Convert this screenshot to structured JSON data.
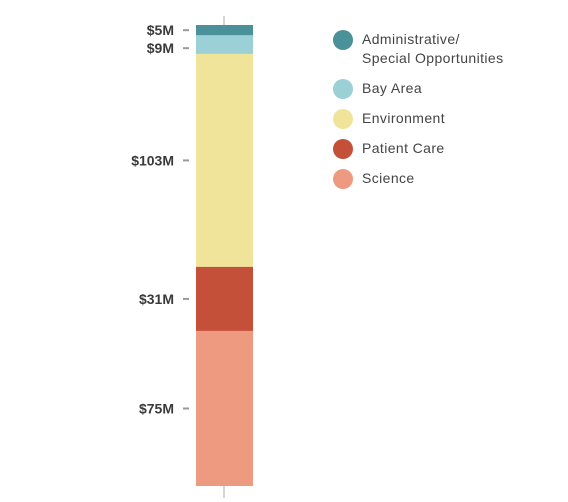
{
  "chart_data": {
    "type": "bar",
    "stacked": true,
    "orientation": "vertical",
    "series": [
      {
        "name": "Administrative/ Special Opportunities",
        "value": 5,
        "label": "$5M",
        "color": "#4a9199"
      },
      {
        "name": "Bay Area",
        "value": 9,
        "label": "$9M",
        "color": "#9ad0d6"
      },
      {
        "name": "Environment",
        "value": 103,
        "label": "$103M",
        "color": "#f0e49a"
      },
      {
        "name": "Patient Care",
        "value": 31,
        "label": "$31M",
        "color": "#c5503a"
      },
      {
        "name": "Science",
        "value": 75,
        "label": "$75M",
        "color": "#ee9a80"
      }
    ],
    "legend": {
      "position": "top-right",
      "items": [
        {
          "label": "Administrative/ Special Opportunities",
          "color": "#4a9199"
        },
        {
          "label": "Bay Area",
          "color": "#9ad0d6"
        },
        {
          "label": "Environment",
          "color": "#f0e49a"
        },
        {
          "label": "Patient Care",
          "color": "#c5503a"
        },
        {
          "label": "Science",
          "color": "#ee9a80"
        }
      ]
    },
    "axis_color": "#d6d6d6",
    "grid": false
  }
}
